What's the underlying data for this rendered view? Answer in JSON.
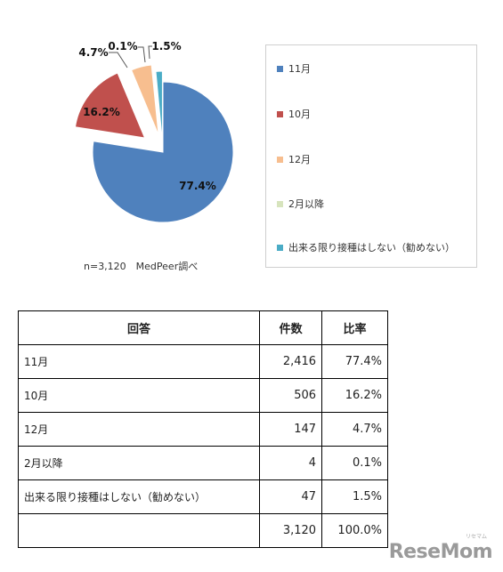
{
  "chart_data": {
    "type": "pie",
    "slices": [
      {
        "label": "11月",
        "value": 77.4,
        "display": "77.4%",
        "color": "#4f81bd"
      },
      {
        "label": "10月",
        "value": 16.2,
        "display": "16.2%",
        "color": "#c0504d"
      },
      {
        "label": "12月",
        "value": 4.7,
        "display": "4.7%",
        "color": "#f7be8f"
      },
      {
        "label": "2月以降",
        "value": 0.1,
        "display": "0.1%",
        "color": "#d7e4bd"
      },
      {
        "label": "出来る限り接種はしない（勧めない）",
        "value": 1.5,
        "display": "1.5%",
        "color": "#4bacc6"
      }
    ],
    "legend_position": "right",
    "note": "n=3,120　MedPeer調べ"
  },
  "table": {
    "headers": [
      "回答",
      "件数",
      "比率"
    ],
    "rows": [
      {
        "answer": "11月",
        "count": "2,416",
        "ratio": "77.4%"
      },
      {
        "answer": "10月",
        "count": "506",
        "ratio": "16.2%"
      },
      {
        "answer": "12月",
        "count": "147",
        "ratio": "4.7%"
      },
      {
        "answer": "2月以降",
        "count": "4",
        "ratio": "0.1%"
      },
      {
        "answer": "出来る限り接種はしない（勧めない）",
        "count": "47",
        "ratio": "1.5%"
      },
      {
        "answer": "",
        "count": "3,120",
        "ratio": "100.0%"
      }
    ]
  },
  "brand": {
    "name": "ReseMom",
    "sub": "リセマム"
  }
}
